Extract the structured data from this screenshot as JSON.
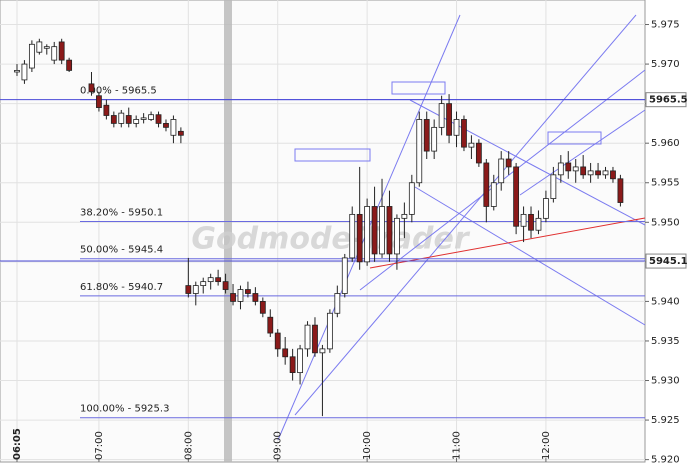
{
  "chart_data": {
    "type": "candlestick",
    "x": [
      365,
      370,
      375,
      380,
      385,
      390,
      395,
      400,
      415,
      420,
      425,
      430,
      435,
      440,
      445,
      450,
      455,
      460,
      465,
      470,
      475,
      480,
      485,
      490,
      495,
      500,
      505,
      510,
      515,
      520,
      525,
      530,
      535,
      540,
      545,
      550,
      555,
      560,
      565,
      570,
      575,
      580,
      585,
      590,
      595,
      600,
      605,
      610,
      615,
      620,
      625,
      630,
      635,
      640,
      645,
      650,
      655,
      660,
      665,
      670,
      675,
      680,
      685,
      690,
      695,
      700,
      705,
      710,
      715,
      720,
      725,
      730,
      735,
      740,
      745,
      750,
      755,
      760,
      765,
      770
    ],
    "open": [
      5.969,
      5.968,
      5.9695,
      5.9715,
      5.972,
      5.9705,
      5.9728,
      5.9705,
      5.9675,
      5.966,
      5.9648,
      5.9635,
      5.9625,
      5.9635,
      5.9625,
      5.963,
      5.963,
      5.9636,
      5.9625,
      5.961,
      5.9615,
      5.942,
      5.941,
      5.942,
      5.9425,
      5.943,
      5.9425,
      5.941,
      5.94,
      5.9415,
      5.941,
      5.94,
      5.938,
      5.936,
      5.934,
      5.933,
      5.931,
      5.934,
      5.937,
      5.9335,
      5.934,
      5.9385,
      5.941,
      5.9455,
      5.951,
      5.945,
      5.952,
      5.946,
      5.952,
      5.946,
      5.9505,
      5.951,
      5.955,
      5.963,
      5.959,
      5.962,
      5.965,
      5.961,
      5.963,
      5.9595,
      5.96,
      5.9575,
      5.952,
      5.955,
      5.958,
      5.957,
      5.9495,
      5.951,
      5.949,
      5.9505,
      5.953,
      5.956,
      5.9575,
      5.9565,
      5.957,
      5.956,
      5.9565,
      5.956,
      5.9565,
      5.9555
    ],
    "high": [
      5.97,
      5.9705,
      5.973,
      5.9732,
      5.9725,
      5.9728,
      5.9732,
      5.9708,
      5.969,
      5.9665,
      5.9655,
      5.964,
      5.9642,
      5.9645,
      5.9635,
      5.9638,
      5.964,
      5.964,
      5.963,
      5.9635,
      5.962,
      5.9455,
      5.9425,
      5.943,
      5.9435,
      5.944,
      5.9435,
      5.9422,
      5.942,
      5.9425,
      5.9418,
      5.9405,
      5.939,
      5.9365,
      5.9355,
      5.934,
      5.9345,
      5.9375,
      5.938,
      5.9345,
      5.939,
      5.942,
      5.946,
      5.952,
      5.957,
      5.953,
      5.9545,
      5.9555,
      5.954,
      5.951,
      5.9525,
      5.956,
      5.964,
      5.964,
      5.963,
      5.966,
      5.9662,
      5.964,
      5.9635,
      5.961,
      5.9605,
      5.958,
      5.956,
      5.959,
      5.959,
      5.9575,
      5.952,
      5.952,
      5.9515,
      5.954,
      5.957,
      5.9585,
      5.959,
      5.958,
      5.9585,
      5.9575,
      5.9575,
      5.957,
      5.957,
      5.956
    ],
    "low": [
      5.9685,
      5.9675,
      5.969,
      5.9712,
      5.9712,
      5.97,
      5.97,
      5.969,
      5.966,
      5.964,
      5.963,
      5.962,
      5.962,
      5.962,
      5.962,
      5.9625,
      5.9628,
      5.962,
      5.9615,
      5.96,
      5.96,
      5.9405,
      5.9395,
      5.941,
      5.9415,
      5.942,
      5.941,
      5.9395,
      5.939,
      5.9405,
      5.9395,
      5.938,
      5.9355,
      5.933,
      5.932,
      5.93,
      5.9295,
      5.933,
      5.933,
      5.9255,
      5.9335,
      5.938,
      5.9405,
      5.945,
      5.944,
      5.9445,
      5.945,
      5.9455,
      5.945,
      5.944,
      5.948,
      5.95,
      5.9545,
      5.958,
      5.958,
      5.961,
      5.96,
      5.9595,
      5.959,
      5.958,
      5.957,
      5.95,
      5.9515,
      5.954,
      5.956,
      5.9485,
      5.9475,
      5.948,
      5.9485,
      5.95,
      5.9525,
      5.955,
      5.9555,
      5.955,
      5.9555,
      5.955,
      5.9555,
      5.9555,
      5.955,
      5.952
    ],
    "close": [
      5.9692,
      5.97,
      5.9725,
      5.9728,
      5.9722,
      5.9722,
      5.9705,
      5.9692,
      5.9665,
      5.9645,
      5.9635,
      5.9625,
      5.9638,
      5.9625,
      5.963,
      5.9632,
      5.9636,
      5.9625,
      5.962,
      5.963,
      5.961,
      5.941,
      5.942,
      5.9425,
      5.943,
      5.9425,
      5.9415,
      5.94,
      5.9415,
      5.941,
      5.94,
      5.9385,
      5.936,
      5.934,
      5.933,
      5.931,
      5.934,
      5.937,
      5.9335,
      5.934,
      5.9385,
      5.941,
      5.9455,
      5.951,
      5.945,
      5.952,
      5.946,
      5.952,
      5.946,
      5.9505,
      5.951,
      5.955,
      5.963,
      5.959,
      5.962,
      5.965,
      5.961,
      5.963,
      5.9595,
      5.96,
      5.9575,
      5.952,
      5.955,
      5.958,
      5.957,
      5.9495,
      5.951,
      5.949,
      5.9505,
      5.953,
      5.956,
      5.9575,
      5.9565,
      5.957,
      5.956,
      5.9565,
      5.956,
      5.9565,
      5.9555,
      5.9525
    ],
    "up_color": "#ffffff",
    "down_color": "#8b1a1a",
    "xlim": [
      353.6,
      786.5
    ],
    "xticks": [
      {
        "value": 365,
        "label": "06:05"
      },
      {
        "value": 420,
        "label": "07:00"
      },
      {
        "value": 480,
        "label": "08:00"
      },
      {
        "value": 540,
        "label": "09:00"
      },
      {
        "value": 600,
        "label": "10:00"
      },
      {
        "value": 660,
        "label": "11:00"
      },
      {
        "value": 720,
        "label": "12:00"
      }
    ],
    "ylim": [
      5.9197,
      5.9781
    ],
    "yticks": [
      {
        "value": 5.92,
        "label": "5.920"
      },
      5.925,
      {
        "value": 5.93,
        "label": "5.930"
      },
      5.935,
      {
        "value": 5.94,
        "label": "5.940"
      },
      5.945,
      {
        "value": 5.95,
        "label": "5.950"
      },
      5.955,
      {
        "value": 5.96,
        "label": "5.960"
      },
      5.965,
      {
        "value": 5.97,
        "label": "5.970"
      },
      5.975
    ],
    "grid": true,
    "fib_levels": [
      {
        "value": 5.9655,
        "label": "0.00% - 5965.5"
      },
      {
        "value": 5.9501,
        "label": "38.20% - 5950.1"
      },
      {
        "value": 5.9454,
        "label": "50.00% - 5945.4"
      },
      {
        "value": 5.9407,
        "label": "61.80% - 5940.7"
      },
      {
        "value": 5.9253,
        "label": "100.00% - 5925.3"
      }
    ],
    "price_markers": [
      {
        "value": 5.9655,
        "label": "5965.5"
      },
      {
        "value": 5.9451,
        "label": "5945.1"
      }
    ],
    "watermark": "Godmode-Trader"
  }
}
